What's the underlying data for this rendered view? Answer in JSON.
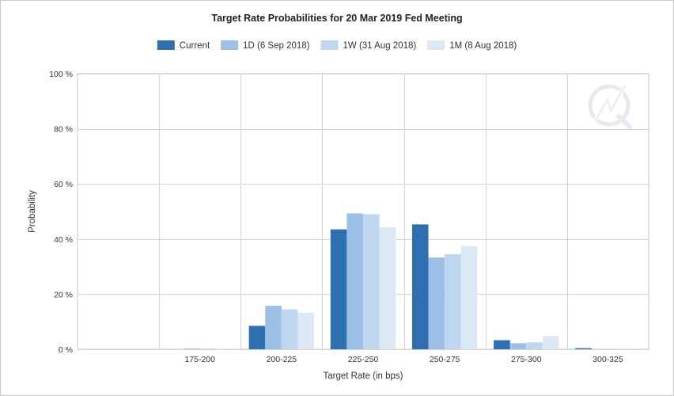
{
  "chart_data": {
    "type": "bar",
    "title": "Target Rate Probabilities for 20 Mar 2019 Fed Meeting",
    "xlabel": "Target Rate (in bps)",
    "ylabel": "Probability",
    "categories": [
      "",
      "175-200",
      "200-225",
      "225-250",
      "250-275",
      "275-300",
      "300-325"
    ],
    "ylim": [
      0,
      100
    ],
    "yticks": [
      0,
      20,
      40,
      60,
      80,
      100
    ],
    "ytick_suffix": " %",
    "grid": true,
    "legend_position": "top-center",
    "series": [
      {
        "name": "Current",
        "color": "#2e6faf",
        "values": [
          0,
          0,
          8.5,
          43.5,
          45.3,
          3.3,
          0.4
        ]
      },
      {
        "name": "1D (6 Sep 2018)",
        "color": "#9dc1e6",
        "values": [
          0,
          0.3,
          15.8,
          49.3,
          33.3,
          2.2,
          0
        ]
      },
      {
        "name": "1W (31 Aug 2018)",
        "color": "#bfd7ee",
        "values": [
          0,
          0.3,
          14.5,
          49.0,
          34.5,
          2.5,
          0
        ]
      },
      {
        "name": "1M (8 Aug 2018)",
        "color": "#dbe8f5",
        "values": [
          0,
          0.2,
          13.2,
          44.3,
          37.5,
          4.8,
          0.2
        ]
      }
    ]
  }
}
